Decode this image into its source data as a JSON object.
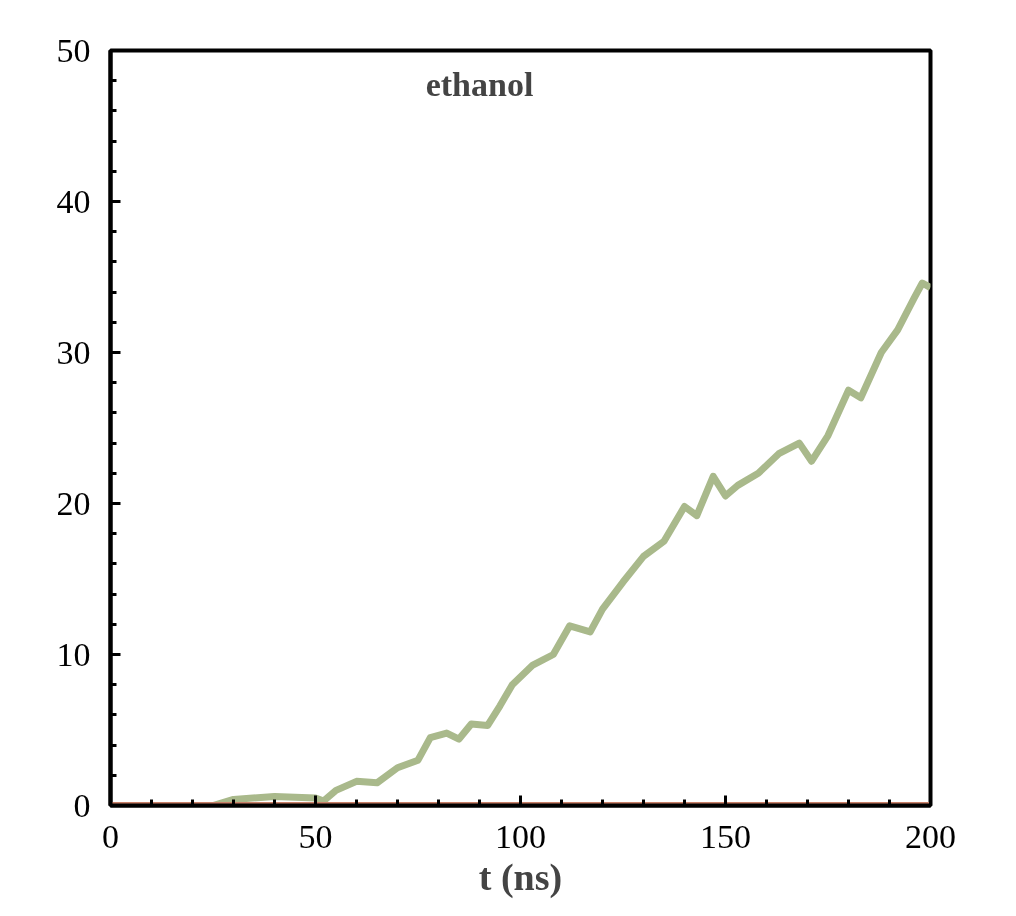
{
  "chart_data": {
    "type": "line",
    "xlabel": "t (ns)",
    "annotations": [
      "ethanol"
    ],
    "series": [
      {
        "color": "#a9b98b",
        "x": [
          0,
          25,
          30,
          40,
          50,
          52,
          55,
          60,
          65,
          70,
          75,
          78,
          82,
          85,
          88,
          92,
          95,
          98,
          103,
          108,
          112,
          117,
          120,
          125,
          130,
          135,
          140,
          143,
          147,
          150,
          153,
          158,
          163,
          168,
          171,
          175,
          180,
          183,
          188,
          192,
          196,
          198,
          200
        ],
        "values": [
          0,
          0,
          0.4,
          0.6,
          0.5,
          0.3,
          1,
          1.6,
          1.5,
          2.5,
          3,
          4.5,
          4.8,
          4.4,
          5.4,
          5.3,
          6.6,
          8,
          9.3,
          10,
          11.9,
          11.5,
          13,
          14.8,
          16.5,
          17.5,
          19.8,
          19.2,
          21.8,
          20.5,
          21.2,
          22,
          23.3,
          24,
          22.8,
          24.5,
          27.5,
          27,
          30,
          31.5,
          33.6,
          34.6,
          34.3
        ]
      },
      {
        "color": "#c98068",
        "x": [
          0,
          200
        ],
        "values": [
          0,
          0
        ]
      }
    ],
    "xlim": [
      0,
      200
    ],
    "xticks": [
      0,
      50,
      100,
      150,
      200
    ],
    "ylim": [
      0,
      50
    ],
    "yticks": [
      0,
      10,
      20,
      30,
      40,
      50
    ],
    "grid": false
  }
}
